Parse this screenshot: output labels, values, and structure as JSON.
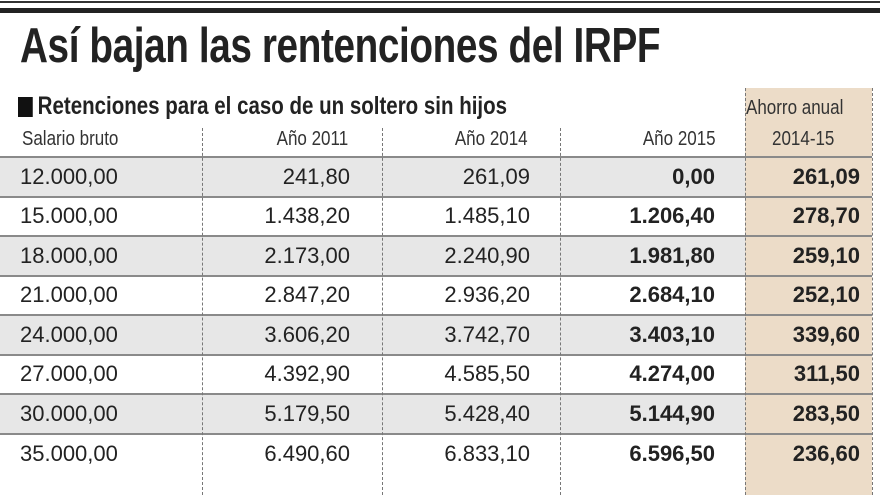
{
  "title": "Así bajan las rentenciones del IRPF",
  "subtitle": "Retenciones para el caso de un soltero sin hijos",
  "columns": {
    "salary": "Salario bruto",
    "y2011": "Año 2011",
    "y2014": "Año 2014",
    "y2015": "Año 2015",
    "savings_line1": "Ahorro anual",
    "savings_line2": "2014-15"
  },
  "rows": [
    {
      "salary": "12.000,00",
      "y2011": "241,80",
      "y2014": "261,09",
      "y2015": "0,00",
      "savings": "261,09"
    },
    {
      "salary": "15.000,00",
      "y2011": "1.438,20",
      "y2014": "1.485,10",
      "y2015": "1.206,40",
      "savings": "278,70"
    },
    {
      "salary": "18.000,00",
      "y2011": "2.173,00",
      "y2014": "2.240,90",
      "y2015": "1.981,80",
      "savings": "259,10"
    },
    {
      "salary": "21.000,00",
      "y2011": "2.847,20",
      "y2014": "2.936,20",
      "y2015": "2.684,10",
      "savings": "252,10"
    },
    {
      "salary": "24.000,00",
      "y2011": "3.606,20",
      "y2014": "3.742,70",
      "y2015": "3.403,10",
      "savings": "339,60"
    },
    {
      "salary": "27.000,00",
      "y2011": "4.392,90",
      "y2014": "4.585,50",
      "y2015": "4.274,00",
      "savings": "311,50"
    },
    {
      "salary": "30.000,00",
      "y2011": "5.179,50",
      "y2014": "5.428,40",
      "y2015": "5.144,90",
      "savings": "283,50"
    },
    {
      "salary": "35.000,00",
      "y2011": "6.490,60",
      "y2014": "6.833,10",
      "y2015": "6.596,50",
      "savings": "236,60"
    }
  ],
  "colors": {
    "savings_bg": "#ecdcc8",
    "alt_row_bg": "#e7e7e7"
  }
}
